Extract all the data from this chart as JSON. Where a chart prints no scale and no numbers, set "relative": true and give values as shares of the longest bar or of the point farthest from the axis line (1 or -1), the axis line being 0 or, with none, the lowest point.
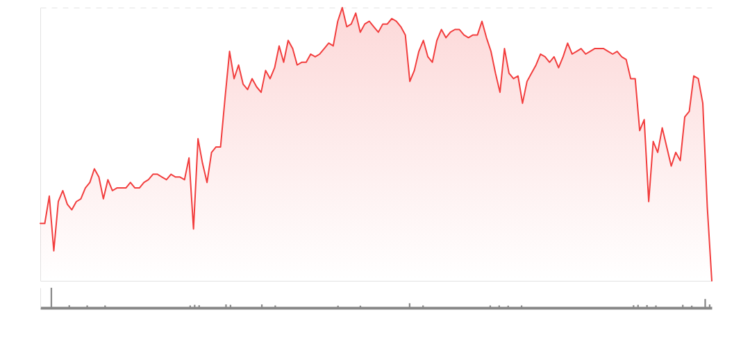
{
  "chart_data": [
    {
      "type": "area",
      "relative": true,
      "categories": [
        null,
        null,
        null,
        null,
        null,
        null,
        null,
        null,
        null,
        null,
        null,
        null,
        null,
        null,
        null,
        null,
        null,
        null,
        null,
        null,
        null,
        null,
        null,
        null,
        null,
        null,
        null,
        null,
        null,
        null,
        null,
        null,
        null,
        null,
        null,
        null,
        null,
        null,
        null,
        null,
        null,
        null,
        null,
        null,
        null,
        null,
        null,
        null,
        null,
        null,
        null,
        null,
        null,
        null,
        null,
        null,
        null,
        null,
        null,
        null,
        null,
        null,
        null,
        null,
        null,
        null,
        null,
        null,
        null,
        null,
        null,
        null,
        null,
        null,
        null,
        null,
        null,
        null,
        null,
        null,
        null,
        null,
        null,
        null,
        null,
        null,
        null,
        null,
        null,
        null,
        null,
        null,
        null,
        null,
        null,
        null,
        null,
        null,
        null,
        null,
        null,
        null,
        null,
        null,
        null,
        null,
        null,
        null,
        null,
        null,
        null,
        null,
        null,
        null,
        null,
        null,
        null,
        null,
        null,
        null,
        null,
        null,
        null,
        null,
        null,
        null,
        null,
        null,
        null,
        null,
        null,
        null,
        null,
        null,
        null,
        null,
        null,
        null,
        null,
        null,
        null,
        null,
        null,
        null,
        null,
        null,
        null,
        null,
        null,
        null
      ],
      "series": [
        {
          "color": "#f23d3d",
          "values": [
            0.21,
            0.21,
            0.31,
            0.11,
            0.29,
            0.33,
            0.28,
            0.26,
            0.29,
            0.3,
            0.34,
            0.36,
            0.41,
            0.38,
            0.3,
            0.37,
            0.33,
            0.34,
            0.34,
            0.34,
            0.36,
            0.34,
            0.34,
            0.36,
            0.37,
            0.39,
            0.39,
            0.38,
            0.37,
            0.39,
            0.38,
            0.38,
            0.37,
            0.45,
            0.19,
            0.52,
            0.43,
            0.36,
            0.47,
            0.49,
            0.49,
            0.67,
            0.84,
            0.74,
            0.79,
            0.72,
            0.7,
            0.74,
            0.71,
            0.69,
            0.77,
            0.74,
            0.78,
            0.86,
            0.8,
            0.88,
            0.85,
            0.79,
            0.8,
            0.8,
            0.83,
            0.82,
            0.83,
            0.85,
            0.87,
            0.86,
            0.95,
            1.0,
            0.93,
            0.94,
            0.98,
            0.91,
            0.94,
            0.95,
            0.93,
            0.91,
            0.94,
            0.94,
            0.96,
            0.95,
            0.93,
            0.9,
            0.73,
            0.77,
            0.84,
            0.88,
            0.82,
            0.8,
            0.88,
            0.92,
            0.89,
            0.91,
            0.92,
            0.92,
            0.9,
            0.89,
            0.9,
            0.9,
            0.95,
            0.89,
            0.84,
            0.76,
            0.69,
            0.85,
            0.76,
            0.74,
            0.75,
            0.65,
            0.73,
            0.76,
            0.79,
            0.83,
            0.82,
            0.8,
            0.82,
            0.78,
            0.82,
            0.87,
            0.83,
            0.84,
            0.85,
            0.83,
            0.84,
            0.85,
            0.85,
            0.85,
            0.84,
            0.83,
            0.84,
            0.82,
            0.81,
            0.74,
            0.74,
            0.55,
            0.59,
            0.29,
            0.51,
            0.47,
            0.56,
            0.49,
            0.42,
            0.47,
            0.44,
            0.6,
            0.62,
            0.75,
            0.74,
            0.65,
            0.27,
            0
          ]
        }
      ]
    },
    {
      "type": "bar",
      "relative": true,
      "categories": [
        null,
        null,
        null,
        null,
        null,
        null,
        null,
        null,
        null,
        null,
        null,
        null,
        null,
        null,
        null,
        null,
        null,
        null,
        null,
        null,
        null,
        null,
        null,
        null,
        null,
        null,
        null,
        null,
        null,
        null,
        null,
        null,
        null,
        null,
        null,
        null,
        null,
        null,
        null,
        null,
        null,
        null,
        null,
        null,
        null,
        null,
        null,
        null,
        null,
        null,
        null,
        null,
        null,
        null,
        null,
        null,
        null,
        null,
        null,
        null,
        null,
        null,
        null,
        null,
        null,
        null,
        null,
        null,
        null,
        null,
        null,
        null,
        null,
        null,
        null,
        null,
        null,
        null,
        null,
        null,
        null,
        null,
        null,
        null,
        null,
        null,
        null,
        null,
        null,
        null,
        null,
        null,
        null,
        null,
        null,
        null,
        null,
        null,
        null,
        null,
        null,
        null,
        null,
        null,
        null,
        null,
        null,
        null,
        null,
        null,
        null,
        null,
        null,
        null,
        null,
        null,
        null,
        null,
        null,
        null,
        null,
        null,
        null,
        null,
        null,
        null,
        null,
        null,
        null,
        null,
        null,
        null,
        null,
        null,
        null,
        null,
        null,
        null,
        null,
        null,
        null,
        null,
        null,
        null,
        null,
        null,
        null,
        null,
        null,
        null
      ],
      "series": [
        {
          "color": "#888888",
          "values": [
            null,
            null,
            1,
            null,
            null,
            null,
            0.13,
            null,
            null,
            null,
            0.12,
            null,
            null,
            null,
            0.12,
            null,
            null,
            null,
            null,
            null,
            null,
            null,
            null,
            null,
            null,
            null,
            null,
            null,
            null,
            null,
            null,
            null,
            null,
            0.12,
            0.15,
            0.13,
            null,
            null,
            null,
            null,
            null,
            0.17,
            0.15,
            null,
            null,
            null,
            null,
            null,
            null,
            0.17,
            null,
            null,
            0.12,
            null,
            null,
            null,
            null,
            null,
            null,
            null,
            null,
            null,
            null,
            null,
            null,
            null,
            0.11,
            null,
            null,
            null,
            null,
            0.11,
            null,
            null,
            null,
            null,
            null,
            null,
            null,
            null,
            null,
            null,
            0.23,
            null,
            null,
            0.12,
            null,
            null,
            null,
            null,
            null,
            null,
            null,
            null,
            null,
            null,
            null,
            null,
            null,
            null,
            0.12,
            null,
            0.12,
            null,
            0.11,
            null,
            null,
            0.12,
            null,
            null,
            null,
            null,
            null,
            null,
            null,
            null,
            null,
            null,
            null,
            null,
            null,
            null,
            null,
            null,
            null,
            null,
            null,
            null,
            null,
            null,
            null,
            null,
            0.13,
            0.15,
            null,
            0.14,
            null,
            0.12,
            null,
            null,
            null,
            null,
            null,
            0.15,
            null,
            0.11,
            null,
            null,
            0.44,
            0.17
          ]
        }
      ]
    }
  ]
}
